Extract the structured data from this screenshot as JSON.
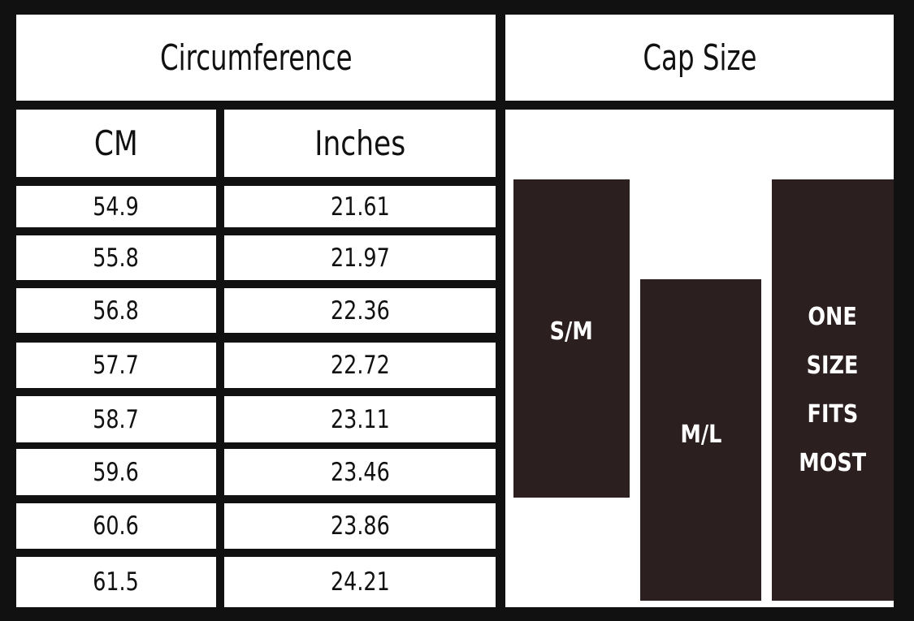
{
  "header": {
    "left": "Circumference",
    "right": "Cap Size"
  },
  "table": {
    "columns": [
      "CM",
      "Inches"
    ],
    "rows": [
      [
        54.9,
        21.61
      ],
      [
        55.8,
        21.97
      ],
      [
        56.8,
        22.36
      ],
      [
        57.7,
        22.72
      ],
      [
        58.7,
        23.11
      ],
      [
        59.6,
        23.46
      ],
      [
        60.6,
        23.86
      ],
      [
        61.5,
        24.21
      ]
    ]
  },
  "sizes": [
    [
      "S/M"
    ],
    [
      "M/L"
    ],
    [
      "ONE",
      "SIZE",
      "FITS",
      "MOST"
    ]
  ]
}
